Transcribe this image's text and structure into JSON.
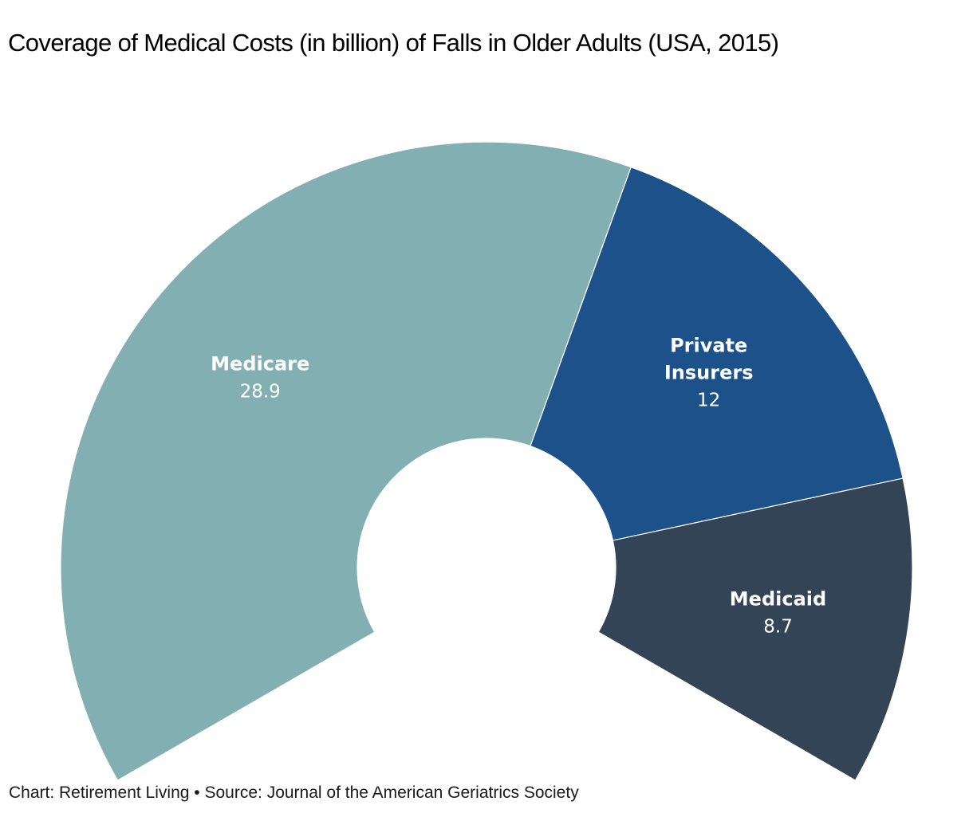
{
  "chart_data": {
    "type": "pie",
    "variant": "semi-donut-240deg",
    "title": "Coverage of Medical Costs (in billion) of Falls in Older Adults (USA, 2015)",
    "unit": "billion USD",
    "slices": [
      {
        "label": "Medicare",
        "label_lines": [
          "Medicare"
        ],
        "value": 28.9,
        "color": "#82afb1"
      },
      {
        "label": "Private Insurers",
        "label_lines": [
          "Private",
          "Insurers"
        ],
        "value": 12,
        "color": "#1c5289"
      },
      {
        "label": "Medicaid",
        "label_lines": [
          "Medicaid"
        ],
        "value": 8.7,
        "color": "#334457"
      }
    ],
    "footer": {
      "credit": "Chart: Retirement Living",
      "separator": "•",
      "source": "Source: Journal of the American Geriatrics Society"
    }
  }
}
